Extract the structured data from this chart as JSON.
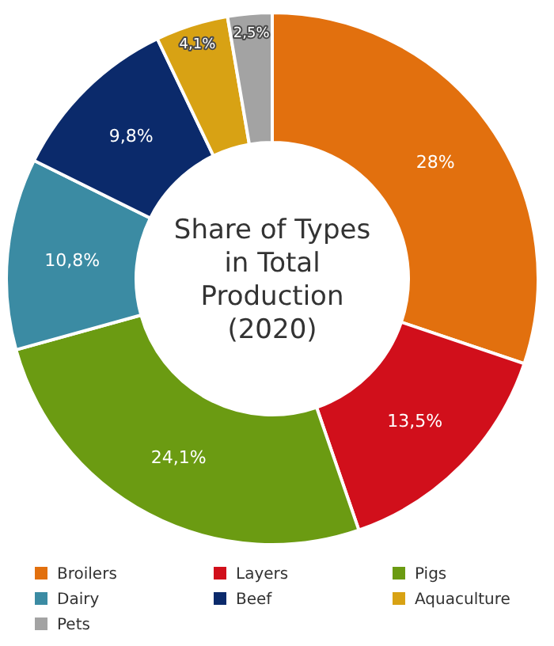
{
  "chart_data": {
    "type": "donut",
    "title": "Share of Types in Total Production (2020)",
    "categories": [
      "Broilers",
      "Layers",
      "Pigs",
      "Dairy",
      "Beef",
      "Aquaculture",
      "Pets"
    ],
    "values": [
      28,
      13.5,
      24.1,
      10.8,
      9.8,
      4.1,
      2.5
    ],
    "value_labels": [
      "28%",
      "13,5%",
      "24,1%",
      "10,8%",
      "9,8%",
      "4,1%",
      "2,5%"
    ],
    "colors": [
      "#e2700e",
      "#d10f1b",
      "#6b9b12",
      "#3b8ba3",
      "#0b2a6b",
      "#d8a214",
      "#a3a3a3"
    ],
    "legend": "bottom"
  }
}
